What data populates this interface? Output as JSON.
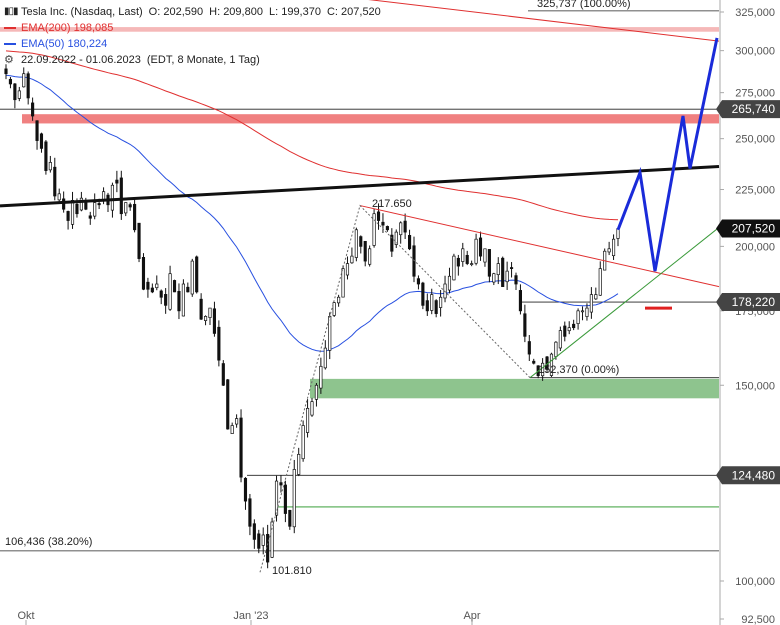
{
  "legend": {
    "instrument": "Tesla Inc. (Nasdaq, Last)",
    "open_label": "O:",
    "open": "202,590",
    "high_label": "H:",
    "high": "209,800",
    "low_label": "L:",
    "low": "199,370",
    "close_label": "C:",
    "close": "207,520",
    "ema200_label": "EMA(200)",
    "ema200_value": "198,085",
    "ema50_label": "EMA(50)",
    "ema50_value": "180,224",
    "period": "22.09.2022 - 01.06.2023",
    "period_details": "(EDT, 8 Monate, 1 Tag)"
  },
  "chart_data": {
    "type": "candlestick",
    "y_axis": {
      "labels": [
        "325,000",
        "300,000",
        "275,000",
        "250,000",
        "225,000",
        "200,000",
        "175,000",
        "150,000",
        "125,000",
        "100,000",
        "92,500"
      ],
      "values": [
        325,
        300,
        275,
        250,
        225,
        200,
        175,
        150,
        125,
        100,
        92.5
      ],
      "scale": "log",
      "position": "right"
    },
    "x_axis": {
      "labels": [
        "Okt",
        "Jan '23",
        "Apr"
      ]
    },
    "price_tags": [
      {
        "label": "265,740",
        "value": 265.74
      },
      {
        "label": "207,520",
        "value": 207.52
      },
      {
        "label": "178,220",
        "value": 178.22
      },
      {
        "label": "124,480",
        "value": 124.48
      }
    ],
    "annotations": [
      {
        "text": "325,737 (100.00%)",
        "value": 325.737
      },
      {
        "text": "217.650",
        "value": 217.65
      },
      {
        "text": "152,370 (0.00%)",
        "value": 152.37
      },
      {
        "text": "106,436 (38.20%)",
        "value": 106.436
      },
      {
        "text": "101.810",
        "value": 101.81
      }
    ],
    "zones": [
      {
        "color": "#f08080",
        "from": 258,
        "to": 263
      },
      {
        "color": "#f5b8b8",
        "from": 312,
        "to": 315
      },
      {
        "color": "#8ec48e",
        "from": 146,
        "to": 152
      }
    ],
    "closes": [
      286,
      280,
      271,
      276,
      286,
      272,
      262,
      249,
      245,
      234,
      238,
      222,
      223,
      216,
      211,
      220,
      214,
      221,
      216,
      212,
      219,
      218,
      224,
      218,
      227,
      228,
      214,
      219,
      217,
      207,
      195,
      183,
      183,
      182,
      185,
      180,
      177,
      189,
      182,
      175,
      185,
      182,
      194,
      182,
      172,
      173,
      176,
      167,
      158,
      150,
      137,
      138,
      140,
      124,
      118,
      112,
      109,
      107,
      110,
      104,
      113,
      123,
      122,
      115,
      112,
      126,
      130,
      138,
      143,
      145,
      150,
      156,
      162,
      173,
      178,
      180,
      191,
      193,
      196,
      207,
      200,
      194,
      199,
      214,
      211,
      209,
      207,
      198,
      206,
      210,
      206,
      199,
      188,
      185,
      177,
      175,
      181,
      174,
      180,
      185,
      188,
      196,
      192,
      199,
      193,
      193,
      203,
      196,
      199,
      188,
      189,
      193,
      184,
      190,
      191,
      185,
      175,
      166,
      160,
      157,
      153,
      157,
      155,
      160,
      164,
      168,
      166,
      169,
      169,
      175,
      175,
      176,
      181,
      181,
      191,
      198,
      199,
      203,
      207.52
    ]
  },
  "colors": {
    "candle_up": "#ffffff",
    "candle_down": "#111111",
    "ema200": "#e03030",
    "ema50": "#2850e0",
    "trendline": "#111111",
    "projection": "#1a2bd9",
    "support_line": "#3a9a3a",
    "tag_bg": "#444444",
    "tag_highlight_bg": "#111111"
  },
  "icons": {
    "bars": "candlestick-icon",
    "settings": "settings-icon"
  }
}
